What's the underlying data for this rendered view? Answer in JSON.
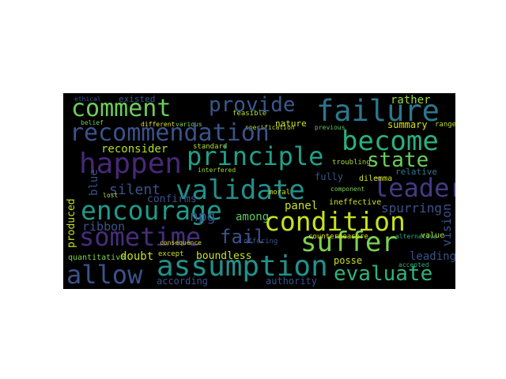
{
  "words": {
    "comment": "comment",
    "provide": "provide",
    "failure": "failure",
    "recommendation": "recommendation",
    "become": "become",
    "happen": "happen",
    "principle": "principle",
    "state": "state",
    "validate": "validate",
    "leader": "leader",
    "encourage": "encourage",
    "condition": "condition",
    "sometime": "sometime",
    "fail": "fail",
    "suffer": "suffer",
    "allow": "allow",
    "assumption": "assumption",
    "evaluate": "evaluate",
    "rather": "rather",
    "summary": "summary",
    "existed": "existed",
    "nature": "nature",
    "reconsider": "reconsider",
    "silent": "silent",
    "confirms": "confirms",
    "npg": "npg",
    "among": "among",
    "panel": "panel",
    "spurring": "spurring",
    "vision": "vision",
    "ribbon": "ribbon",
    "doubt": "doubt",
    "boundless": "boundless",
    "posse": "posse",
    "leading": "leading",
    "according": "according",
    "authority": "authority",
    "produced": "produced",
    "blue": "blue",
    "fully": "fully",
    "relative": "relative",
    "ineffective": "ineffective",
    "dilemma": "dilemma",
    "moral": "moral",
    "quantitative": "quantitative",
    "offering": "offering",
    "countermeasure": "countermeasure",
    "feasible": "feasible",
    "standard": "standard",
    "ethical": "ethical",
    "different": "different",
    "various": "various",
    "belief": "belief",
    "specification": "specification",
    "previous": "previous",
    "troubling": "troubling",
    "interfered": "interfered",
    "consequence": "consequence",
    "lost": "lost",
    "except": "except",
    "value": "value",
    "range": "range",
    "alternative": "alternative",
    "component": "component",
    "accepted": "accepted"
  }
}
